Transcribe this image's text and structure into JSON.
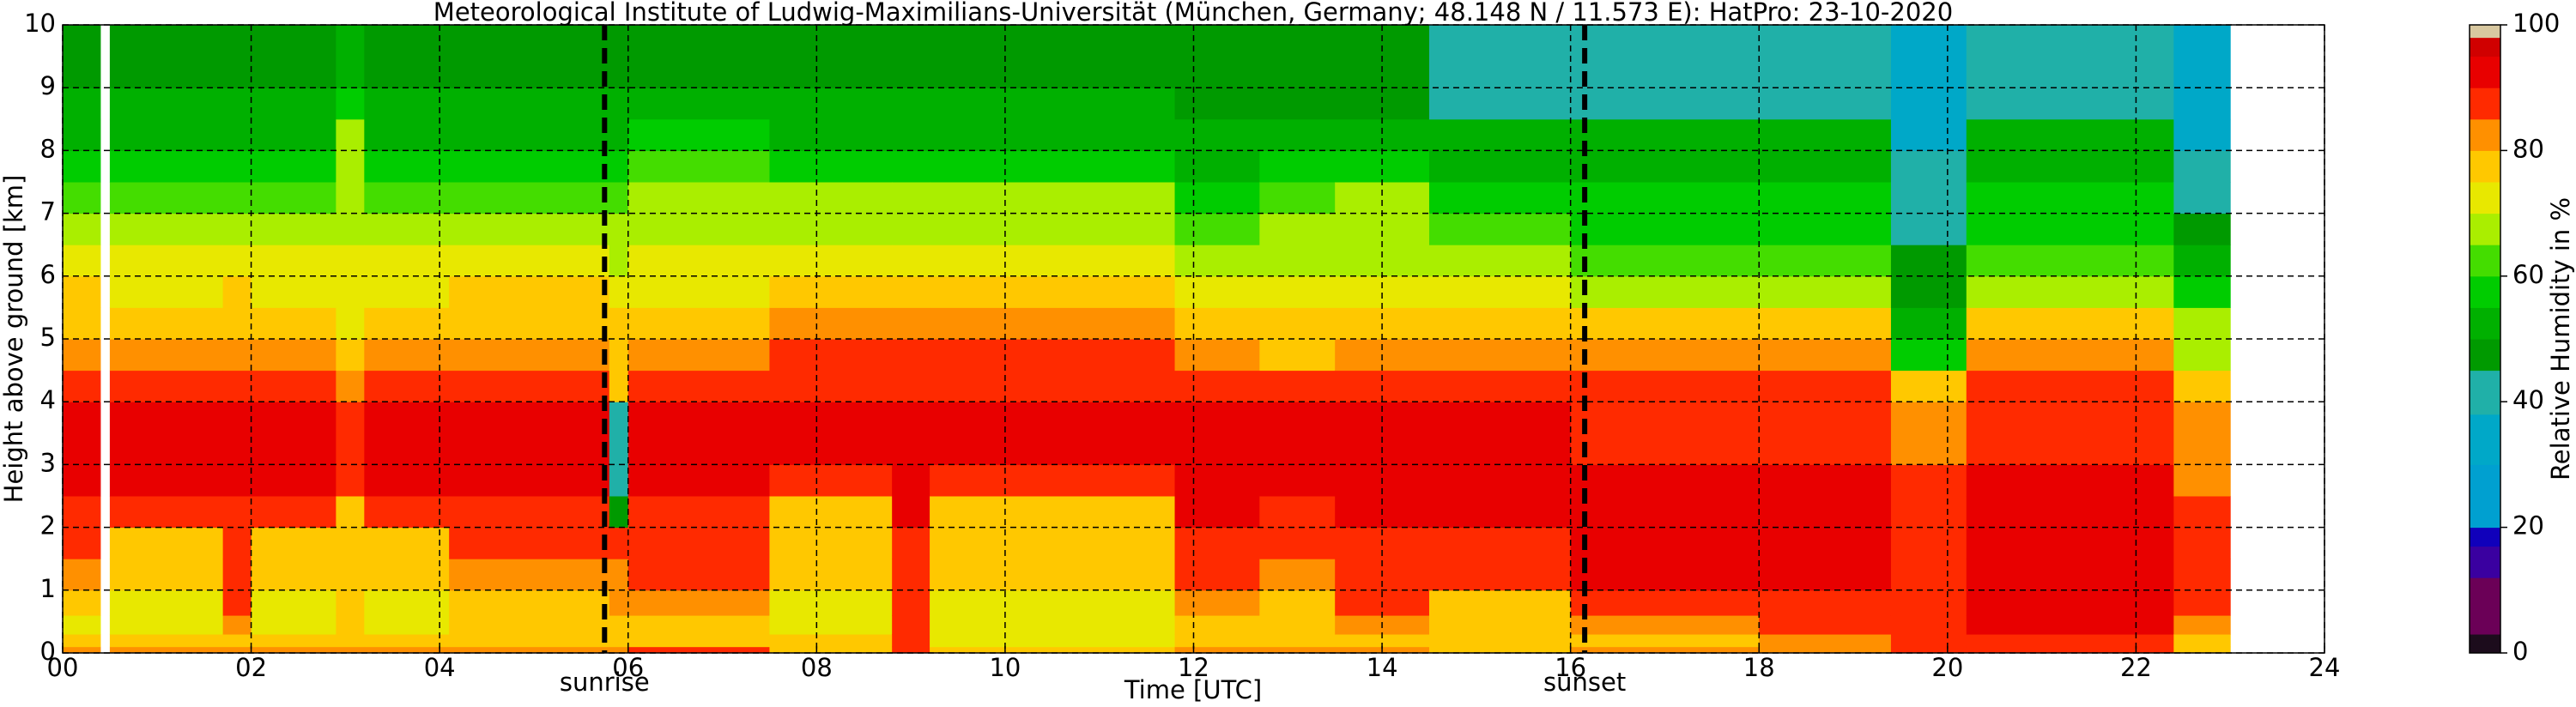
{
  "chart_data": {
    "type": "heatmap",
    "title": "Meteorological Institute of Ludwig-Maximilians-Universität (München, Germany; 48.148 N / 11.573 E):    HatPro: 23-10-2020",
    "x_label": "Time [UTC]",
    "y_label": "Height above ground [km]",
    "xlim": [
      0,
      24
    ],
    "ylim": [
      0,
      10
    ],
    "xticks": [
      {
        "value": 0,
        "label": "00"
      },
      {
        "value": 2,
        "label": "02"
      },
      {
        "value": 4,
        "label": "04"
      },
      {
        "value": 6,
        "label": "06"
      },
      {
        "value": 8,
        "label": "08"
      },
      10,
      12,
      14,
      16,
      18,
      20,
      22,
      24
    ],
    "yticks": [
      0,
      1,
      2,
      3,
      4,
      5,
      6,
      7,
      8,
      9,
      10
    ],
    "grid": true,
    "x_edges": [
      0,
      0.4,
      0.5,
      1.7,
      2.0,
      2.9,
      3.2,
      4.1,
      5.8,
      6.0,
      7.5,
      8.8,
      9.2,
      11.8,
      12.7,
      13.5,
      14.5,
      16,
      18,
      19.4,
      20.2,
      22.4,
      23
    ],
    "y_edges": [
      0,
      0.1,
      0.3,
      0.6,
      1,
      1.5,
      2,
      2.5,
      3,
      4,
      4.5,
      5,
      5.5,
      6,
      6.5,
      7,
      7.5,
      8,
      8.5,
      9,
      10
    ],
    "z": [
      [
        84,
        77,
        75,
        76,
        84,
        88,
        90,
        92,
        92,
        88,
        85,
        80,
        76,
        72,
        68,
        65,
        60,
        55,
        52,
        50
      ],
      [
        null,
        null,
        null,
        null,
        null,
        null,
        null,
        null,
        null,
        null,
        null,
        null,
        null,
        null,
        null,
        null,
        null,
        null,
        null,
        null
      ],
      [
        82,
        76,
        75,
        75,
        76,
        78,
        88,
        92,
        92,
        88,
        84,
        79,
        75,
        71,
        67,
        64,
        58,
        54,
        51,
        48
      ],
      [
        85,
        80,
        85,
        88,
        88,
        88,
        90,
        92,
        92,
        88,
        84,
        80,
        76,
        72,
        68,
        64,
        58,
        54,
        51,
        48
      ],
      [
        82,
        76,
        75,
        75,
        76,
        78,
        88,
        92,
        92,
        88,
        84,
        79,
        75,
        71,
        67,
        64,
        58,
        54,
        51,
        48
      ],
      [
        85,
        78,
        76,
        76,
        76,
        76,
        80,
        88,
        90,
        84,
        78,
        75,
        73,
        72,
        70,
        70,
        68,
        66,
        60,
        55
      ],
      [
        82,
        76,
        75,
        75,
        76,
        78,
        88,
        92,
        92,
        88,
        84,
        79,
        75,
        71,
        67,
        64,
        58,
        54,
        51,
        48
      ],
      [
        84,
        77,
        76,
        76,
        84,
        88,
        90,
        92,
        92,
        88,
        84,
        80,
        76,
        72,
        68,
        64,
        60,
        55,
        52,
        50
      ],
      [
        85,
        80,
        80,
        82,
        85,
        88,
        50,
        40,
        45,
        80,
        80,
        76,
        72,
        68,
        66,
        64,
        58,
        55,
        52,
        50
      ],
      [
        86,
        80,
        80,
        82,
        86,
        88,
        90,
        92,
        92,
        88,
        84,
        78,
        75,
        72,
        70,
        68,
        62,
        56,
        52,
        50
      ],
      [
        80,
        76,
        75,
        75,
        76,
        76,
        78,
        90,
        92,
        90,
        86,
        82,
        78,
        74,
        70,
        66,
        60,
        55,
        52,
        50
      ],
      [
        86,
        88,
        90,
        90,
        90,
        90,
        91,
        92,
        92,
        90,
        86,
        82,
        78,
        74,
        70,
        66,
        60,
        55,
        52,
        50
      ],
      [
        80,
        75,
        75,
        75,
        76,
        76,
        78,
        90,
        92,
        90,
        86,
        82,
        78,
        74,
        70,
        66,
        60,
        55,
        52,
        50
      ],
      [
        84,
        80,
        78,
        82,
        88,
        90,
        91,
        92,
        92,
        88,
        84,
        78,
        72,
        68,
        64,
        58,
        55,
        52,
        50,
        50
      ],
      [
        82,
        78,
        78,
        80,
        84,
        86,
        88,
        92,
        92,
        86,
        80,
        76,
        72,
        68,
        66,
        64,
        56,
        52,
        50,
        50
      ],
      [
        82,
        78,
        82,
        86,
        88,
        90,
        91,
        92,
        92,
        86,
        82,
        78,
        74,
        70,
        68,
        66,
        58,
        52,
        50,
        50
      ],
      [
        80,
        76,
        76,
        78,
        88,
        90,
        91,
        92,
        92,
        88,
        84,
        80,
        74,
        68,
        62,
        58,
        55,
        52,
        45,
        40
      ],
      [
        82,
        80,
        84,
        88,
        92,
        94,
        94,
        92,
        90,
        86,
        82,
        76,
        70,
        65,
        60,
        56,
        54,
        52,
        44,
        40
      ],
      [
        84,
        82,
        86,
        90,
        94,
        94,
        94,
        92,
        90,
        86,
        82,
        76,
        70,
        65,
        60,
        56,
        54,
        52,
        44,
        40
      ],
      [
        86,
        88,
        90,
        90,
        90,
        90,
        88,
        86,
        84,
        78,
        60,
        55,
        50,
        48,
        45,
        42,
        40,
        38,
        38,
        38
      ],
      [
        88,
        90,
        92,
        94,
        95,
        95,
        94,
        92,
        90,
        86,
        82,
        76,
        70,
        65,
        60,
        56,
        54,
        52,
        44,
        40
      ],
      [
        78,
        80,
        84,
        88,
        90,
        88,
        86,
        84,
        82,
        78,
        70,
        66,
        60,
        52,
        48,
        45,
        40,
        38,
        38,
        38
      ]
    ],
    "vlines": [
      {
        "x": 5.75,
        "label": "sunrise"
      },
      {
        "x": 16.15,
        "label": "sunset"
      }
    ],
    "colorbar": {
      "label": "Relative Humidity in %",
      "ticks": [
        0,
        20,
        40,
        60,
        80,
        100
      ],
      "lim": [
        0,
        100
      ],
      "bounds": [
        0,
        3,
        12,
        17,
        20,
        30,
        38,
        45,
        50,
        55,
        60,
        65,
        70,
        75,
        80,
        85,
        90,
        95,
        98,
        100
      ],
      "colors": [
        "#1c0c1c",
        "#6b0057",
        "#3a00a0",
        "#1000bb",
        "#00a0d0",
        "#00a8c8",
        "#20b0a8",
        "#009a00",
        "#00b000",
        "#00cc00",
        "#44dd00",
        "#aaee00",
        "#e8e800",
        "#ffc800",
        "#ff9000",
        "#ff2a00",
        "#e80000",
        "#d00000",
        "#d8c8a0"
      ]
    }
  }
}
